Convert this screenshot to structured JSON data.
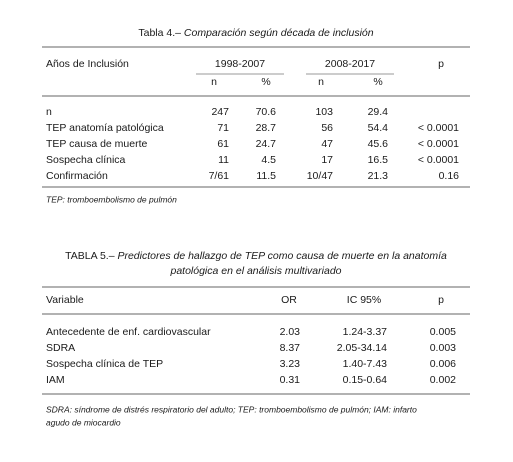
{
  "table4": {
    "title_label": "Tabla 4.–",
    "title": "Comparación según década de inclusión",
    "header": {
      "label": "Años de Inclusión",
      "group1": "1998-2007",
      "group2": "2008-2017",
      "p": "p"
    },
    "subheader": [
      "n",
      "%",
      "n",
      "%"
    ],
    "rows": [
      [
        "n",
        247,
        70.6,
        103,
        29.4,
        null
      ],
      [
        "TEP anatomía patológica",
        71,
        28.7,
        56,
        54.4,
        "< 0.0001"
      ],
      [
        "TEP causa de muerte",
        61,
        24.7,
        47,
        45.6,
        "< 0.0001"
      ],
      [
        "Sospecha clínica",
        11,
        4.5,
        17,
        16.5,
        "< 0.0001"
      ],
      [
        "Confirmación",
        "7/61",
        11.5,
        "10/47",
        21.3,
        0.16
      ]
    ],
    "footnote": "TEP: tromboembolismo de pulmón"
  },
  "table5": {
    "title_label": "TABLA 5.–",
    "title": [
      "Predictores de hallazgo de TEP como causa de muerte en la anatomía",
      "patológica en el análisis multivariado"
    ],
    "header": [
      "Variable",
      "OR",
      "IC 95%",
      "p"
    ],
    "rows": [
      [
        "Antecedente de enf. cardiovascular",
        2.03,
        "1.24-3.37",
        0.005
      ],
      [
        "SDRA",
        8.37,
        "2.05-34.14",
        0.003
      ],
      [
        "Sospecha clínica de TEP",
        3.23,
        "1.40-7.43",
        0.006
      ],
      [
        "IAM",
        0.31,
        "0.15-0.64",
        0.002
      ]
    ],
    "footnote": [
      "SDRA: síndrome de distrés respiratorio del adulto; TEP: tromboembolismo de pulmón; IAM: infarto",
      "agudo de miocardio"
    ]
  }
}
